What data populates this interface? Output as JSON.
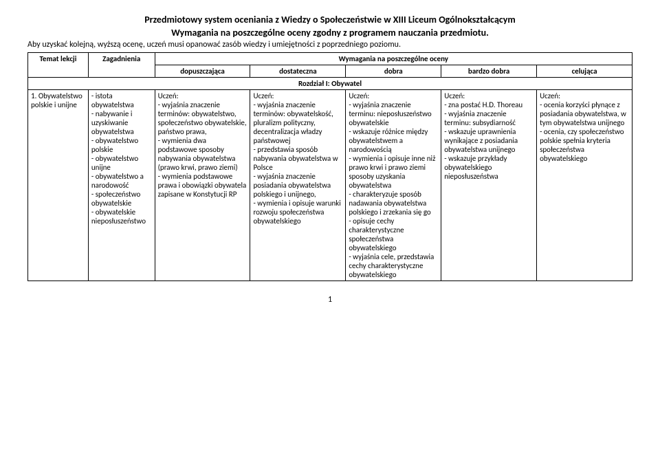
{
  "title": "Przedmiotowy system oceniania z Wiedzy o Społeczeństwie w XIII Liceum Ogólnokształcącym",
  "subtitle": "Wymagania na poszczególne oceny zgodny z programem nauczania przedmiotu.",
  "note": "Aby uzyskać kolejną, wyższą ocenę, uczeń musi opanować zasób wiedzy i umiejętności z poprzedniego poziomu.",
  "headers": {
    "temat": "Temat lekcji",
    "zagadnienia": "Zagadnienia",
    "wymagania": "Wymagania na poszczególne oceny",
    "dopuszczajaca": "dopuszczająca",
    "dostateczna": "dostateczna",
    "dobra": "dobra",
    "bardzo_dobra": "bardzo dobra",
    "celujaca": "celująca"
  },
  "chapter": "Rozdział I: Obywatel",
  "row": {
    "temat": "1. Obywatelstwo polskie i unijne",
    "zagadnienia": "- istota obywatelstwa\n- nabywanie i uzyskiwanie obywatelstwa\n- obywatelstwo polskie\n- obywatelstwo unijne\n- obywatelstwo a narodowość\n- społeczeństwo obywatelskie\n- obywatelskie nieposłuszeństwo",
    "dopuszczajaca": "Uczeń:\n- wyjaśnia znaczenie terminów: obywatelstwo, społeczeństwo obywatelskie, państwo prawa,\n- wymienia dwa podstawowe sposoby nabywania obywatelstwa (prawo krwi, prawo ziemi)\n- wymienia podstawowe prawa i obowiązki obywatela zapisane w Konstytucji RP",
    "dostateczna": "Uczeń:\n- wyjaśnia znaczenie terminów: obywatelskość, pluralizm polityczny, decentralizacja władzy państwowej\n- przedstawia sposób nabywania obywatelstwa w Polsce\n- wyjaśnia znaczenie posiadania obywatelstwa polskiego i unijnego,\n- wymienia i opisuje warunki rozwoju społeczeństwa obywatelskiego",
    "dobra": "Uczeń:\n- wyjaśnia znaczenie terminu: nieposłuszeństwo obywatelskie\n- wskazuje różnice między obywatelstwem a narodowością\n- wymienia i opisuje inne niż prawo krwi i prawo ziemi sposoby uzyskania obywatelstwa\n- charakteryzuje sposób nadawania obywatelstwa polskiego i zrzekania się go\n- opisuje cechy charakterystyczne społeczeństwa obywatelskiego\n- wyjaśnia cele, przedstawia cechy charakterystyczne obywatelskiego",
    "bardzo_dobra": "Uczeń:\n- zna postać H.D. Thoreau\n- wyjaśnia znaczenie terminu: subsydiarność\n- wskazuje uprawnienia wynikające z posiadania obywatelstwa unijnego\n- wskazuje przykłady obywatelskiego nieposłuszeństwa",
    "celujaca": "Uczeń:\n- ocenia korzyści płynące z posiadania obywatelstwa, w tym obywatelstwa unijnego\n- ocenia, czy społeczeństwo polskie spełnia kryteria społeczeństwa obywatelskiego"
  },
  "page_number": "1"
}
